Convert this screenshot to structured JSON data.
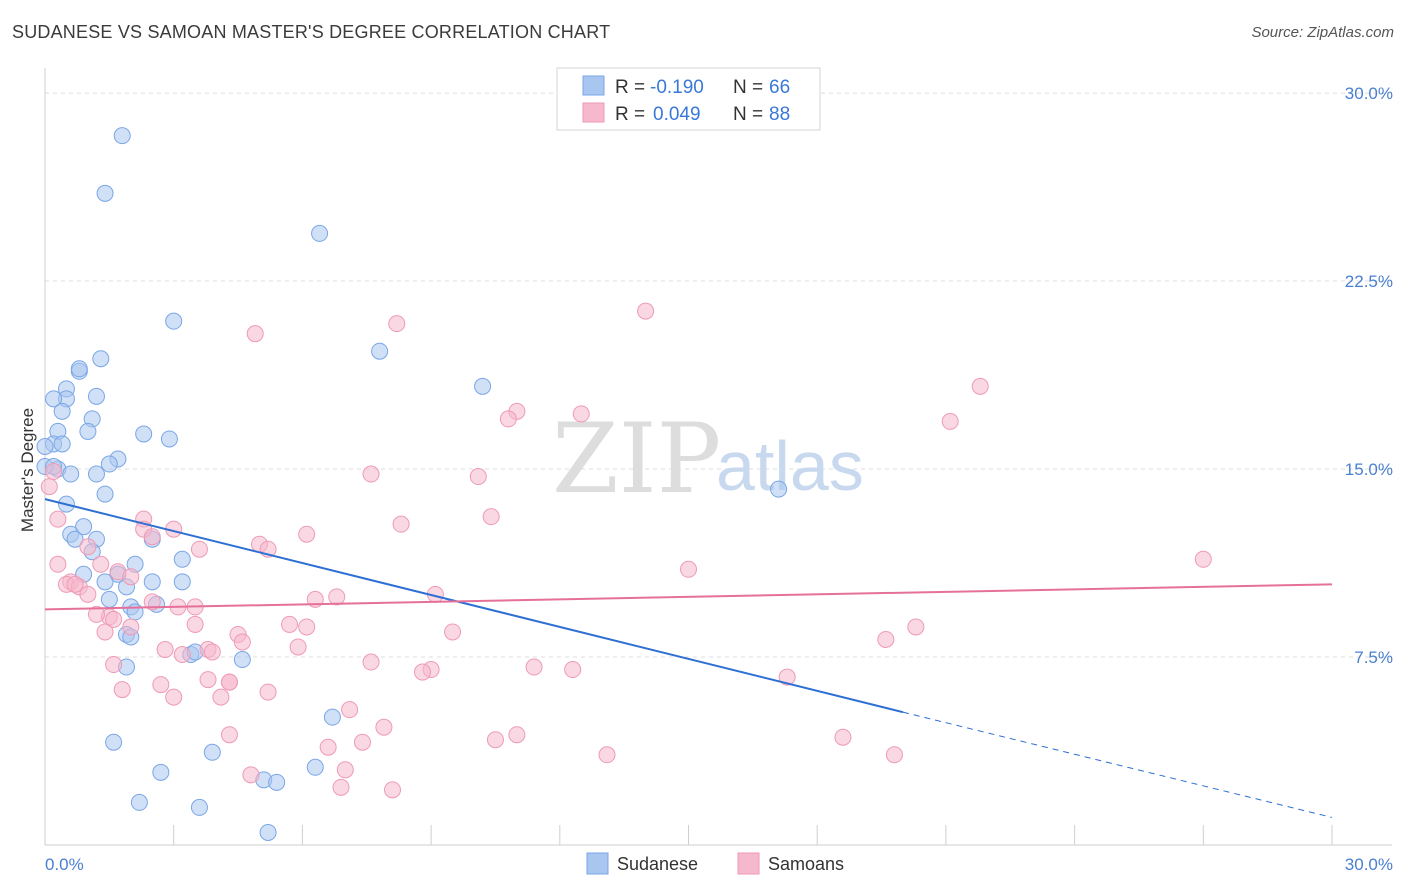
{
  "title": "SUDANESE VS SAMOAN MASTER'S DEGREE CORRELATION CHART",
  "source": "Source: ZipAtlas.com",
  "watermark": {
    "part1": "ZIP",
    "part2": "atlas"
  },
  "legend": {
    "r_label": "R =",
    "n_label": "N =",
    "rows": [
      {
        "r": "-0.190",
        "n": "66",
        "color": "#a9c6f0"
      },
      {
        "r": "0.049",
        "n": "88",
        "color": "#f6b8cc"
      }
    ]
  },
  "chart_data": {
    "type": "scatter",
    "title": "SUDANESE VS SAMOAN MASTER'S DEGREE CORRELATION CHART",
    "xlabel": "",
    "ylabel": "Master's Degree",
    "xlim": [
      0,
      30
    ],
    "ylim": [
      0,
      31
    ],
    "x_tick_labels": [
      "0.0%",
      "30.0%"
    ],
    "y_ticks": [
      7.5,
      15.0,
      22.5,
      30.0
    ],
    "y_tick_labels": [
      "7.5%",
      "15.0%",
      "22.5%",
      "30.0%"
    ],
    "grid": true,
    "legend_position": "top-center",
    "series": [
      {
        "name": "Sudanese",
        "color": "#7aa6e6",
        "fill": "#a9c6f0",
        "trend": {
          "x": [
            0,
            20.0,
            30
          ],
          "y": [
            13.8,
            5.3,
            1.1
          ],
          "solid_until": 20.0,
          "line_color": "#2e6fd4"
        },
        "points": [
          [
            1.8,
            28.3
          ],
          [
            1.4,
            26.0
          ],
          [
            6.4,
            24.4
          ],
          [
            3.0,
            20.9
          ],
          [
            7.8,
            19.7
          ],
          [
            1.3,
            19.4
          ],
          [
            0.8,
            18.9
          ],
          [
            0.8,
            19.0
          ],
          [
            10.2,
            18.3
          ],
          [
            0.5,
            18.2
          ],
          [
            0.5,
            17.8
          ],
          [
            1.2,
            17.9
          ],
          [
            0.2,
            17.8
          ],
          [
            0.4,
            17.3
          ],
          [
            1.1,
            17.0
          ],
          [
            1.0,
            16.5
          ],
          [
            0.3,
            16.5
          ],
          [
            2.3,
            16.4
          ],
          [
            2.9,
            16.2
          ],
          [
            0.2,
            16.0
          ],
          [
            0.4,
            16.0
          ],
          [
            1.7,
            15.4
          ],
          [
            1.5,
            15.2
          ],
          [
            0.3,
            15.0
          ],
          [
            0.6,
            14.8
          ],
          [
            1.2,
            14.8
          ],
          [
            0.0,
            15.1
          ],
          [
            1.4,
            14.0
          ],
          [
            0.5,
            13.6
          ],
          [
            17.1,
            14.2
          ],
          [
            0.9,
            12.7
          ],
          [
            0.6,
            12.4
          ],
          [
            0.7,
            12.2
          ],
          [
            1.2,
            12.2
          ],
          [
            2.5,
            12.2
          ],
          [
            1.1,
            11.7
          ],
          [
            2.1,
            11.2
          ],
          [
            3.2,
            11.4
          ],
          [
            0.9,
            10.8
          ],
          [
            1.7,
            10.8
          ],
          [
            1.4,
            10.5
          ],
          [
            2.5,
            10.5
          ],
          [
            3.2,
            10.5
          ],
          [
            1.9,
            10.3
          ],
          [
            1.5,
            9.8
          ],
          [
            2.0,
            9.5
          ],
          [
            2.6,
            9.6
          ],
          [
            2.1,
            9.3
          ],
          [
            1.9,
            8.4
          ],
          [
            2.0,
            8.3
          ],
          [
            3.4,
            7.6
          ],
          [
            3.5,
            7.7
          ],
          [
            4.6,
            7.4
          ],
          [
            1.9,
            7.1
          ],
          [
            6.7,
            5.1
          ],
          [
            1.6,
            4.1
          ],
          [
            3.9,
            3.7
          ],
          [
            2.7,
            2.9
          ],
          [
            6.3,
            3.1
          ],
          [
            5.1,
            2.6
          ],
          [
            5.4,
            2.5
          ],
          [
            2.2,
            1.7
          ],
          [
            3.6,
            1.5
          ],
          [
            5.2,
            0.5
          ],
          [
            0.0,
            15.9
          ],
          [
            0.2,
            15.1
          ]
        ]
      },
      {
        "name": "Samoans",
        "color": "#ef9ab5",
        "fill": "#f6b8cc",
        "trend": {
          "x": [
            0,
            30
          ],
          "y": [
            9.4,
            10.4
          ],
          "line_color": "#e5709a"
        },
        "points": [
          [
            14.0,
            21.3
          ],
          [
            8.2,
            20.8
          ],
          [
            4.9,
            20.4
          ],
          [
            21.8,
            18.3
          ],
          [
            11.0,
            17.3
          ],
          [
            12.5,
            17.2
          ],
          [
            10.8,
            17.0
          ],
          [
            21.1,
            16.9
          ],
          [
            7.6,
            14.8
          ],
          [
            10.1,
            14.7
          ],
          [
            0.1,
            14.3
          ],
          [
            0.2,
            14.9
          ],
          [
            10.4,
            13.1
          ],
          [
            2.3,
            13.0
          ],
          [
            0.3,
            13.0
          ],
          [
            8.3,
            12.8
          ],
          [
            2.3,
            12.6
          ],
          [
            3.0,
            12.6
          ],
          [
            6.1,
            12.4
          ],
          [
            2.5,
            12.3
          ],
          [
            5.0,
            12.0
          ],
          [
            5.2,
            11.8
          ],
          [
            1.0,
            11.9
          ],
          [
            3.6,
            11.8
          ],
          [
            0.3,
            11.2
          ],
          [
            1.3,
            11.2
          ],
          [
            27.0,
            11.4
          ],
          [
            15.0,
            11.0
          ],
          [
            1.7,
            10.9
          ],
          [
            0.6,
            10.5
          ],
          [
            0.5,
            10.4
          ],
          [
            0.8,
            10.3
          ],
          [
            0.7,
            10.4
          ],
          [
            2.0,
            10.7
          ],
          [
            1.0,
            10.0
          ],
          [
            6.3,
            9.8
          ],
          [
            6.8,
            9.9
          ],
          [
            9.1,
            10.0
          ],
          [
            2.5,
            9.7
          ],
          [
            3.1,
            9.5
          ],
          [
            3.5,
            9.5
          ],
          [
            1.5,
            9.1
          ],
          [
            1.6,
            9.0
          ],
          [
            3.5,
            8.8
          ],
          [
            5.7,
            8.8
          ],
          [
            6.1,
            8.7
          ],
          [
            2.0,
            8.7
          ],
          [
            1.4,
            8.5
          ],
          [
            4.5,
            8.4
          ],
          [
            9.5,
            8.5
          ],
          [
            20.3,
            8.7
          ],
          [
            19.6,
            8.2
          ],
          [
            4.6,
            8.1
          ],
          [
            5.9,
            7.9
          ],
          [
            3.8,
            7.8
          ],
          [
            2.8,
            7.8
          ],
          [
            3.9,
            7.7
          ],
          [
            3.2,
            7.6
          ],
          [
            7.6,
            7.3
          ],
          [
            9.0,
            7.0
          ],
          [
            8.8,
            6.9
          ],
          [
            11.4,
            7.1
          ],
          [
            12.3,
            7.0
          ],
          [
            17.3,
            6.7
          ],
          [
            3.8,
            6.6
          ],
          [
            4.3,
            6.5
          ],
          [
            4.3,
            6.5
          ],
          [
            2.7,
            6.4
          ],
          [
            1.8,
            6.2
          ],
          [
            5.2,
            6.1
          ],
          [
            4.1,
            5.9
          ],
          [
            3.0,
            5.9
          ],
          [
            7.1,
            5.4
          ],
          [
            7.9,
            4.7
          ],
          [
            4.3,
            4.4
          ],
          [
            11.0,
            4.4
          ],
          [
            10.5,
            4.2
          ],
          [
            18.6,
            4.3
          ],
          [
            6.6,
            3.9
          ],
          [
            7.4,
            4.1
          ],
          [
            13.1,
            3.6
          ],
          [
            19.8,
            3.6
          ],
          [
            7.0,
            3.0
          ],
          [
            4.8,
            2.8
          ],
          [
            6.9,
            2.3
          ],
          [
            8.1,
            2.2
          ],
          [
            1.2,
            9.2
          ],
          [
            1.6,
            7.2
          ]
        ]
      }
    ]
  }
}
